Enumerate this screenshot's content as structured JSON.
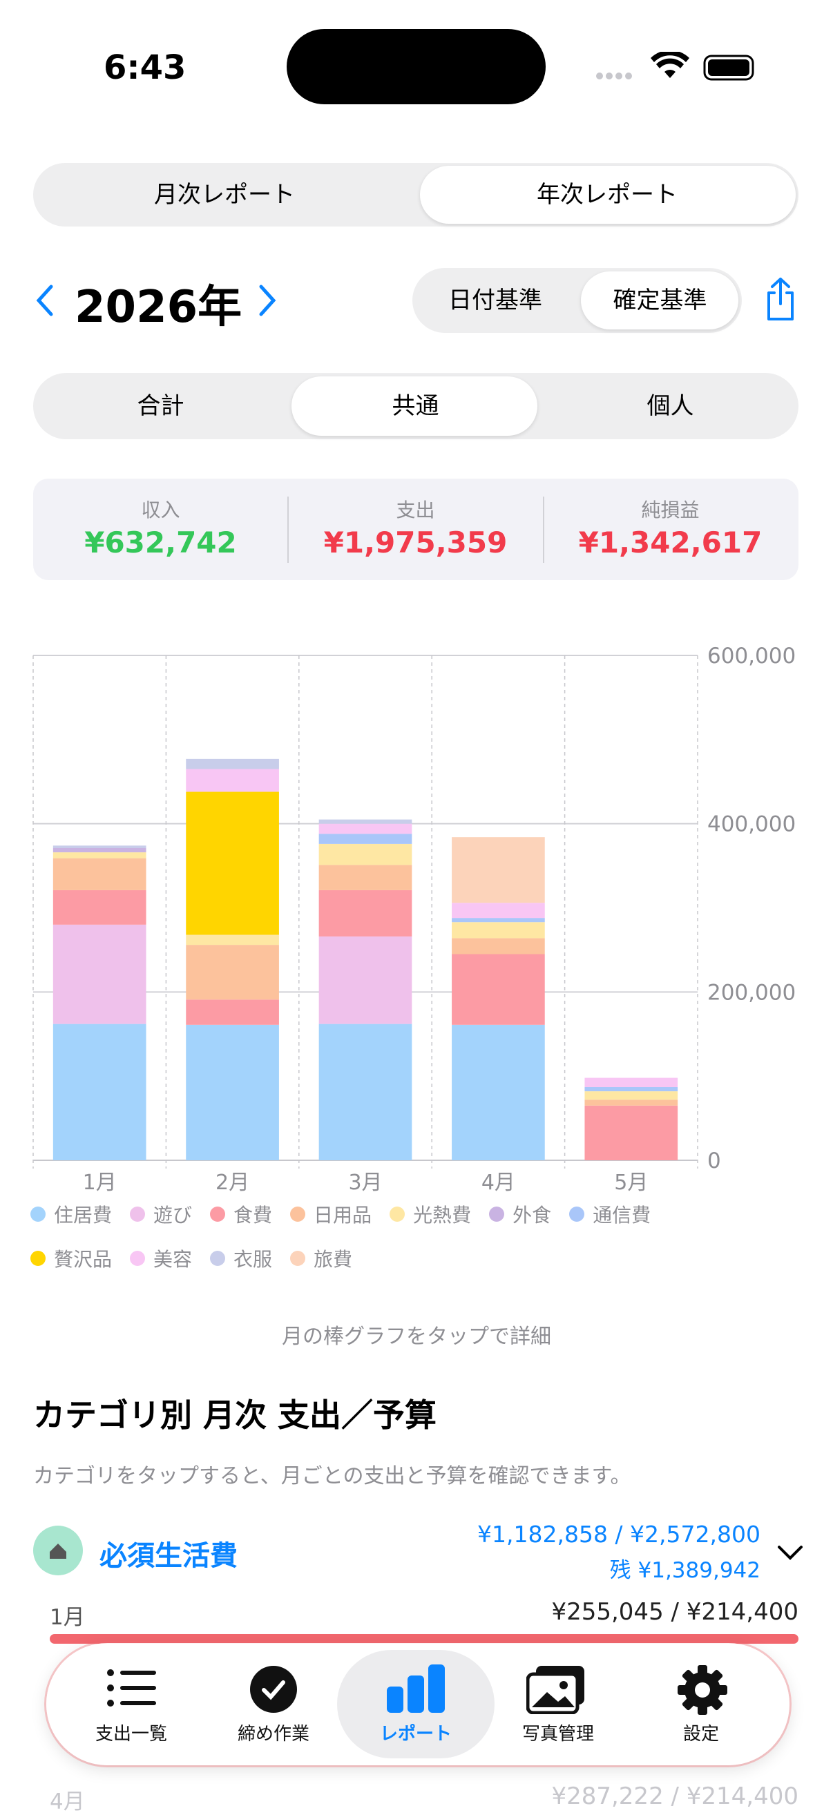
{
  "status": {
    "time": "6:43"
  },
  "report_tabs": [
    "月次レポート",
    "年次レポート"
  ],
  "year": "2026年",
  "basis": [
    "日付基準",
    "確定基準"
  ],
  "scope": [
    "合計",
    "共通",
    "個人"
  ],
  "summary": [
    {
      "label": "収入",
      "value": "¥632,742"
    },
    {
      "label": "支出",
      "value": "¥1,975,359"
    },
    {
      "label": "純損益",
      "value": "¥1,342,617"
    }
  ],
  "chart_data": {
    "type": "bar",
    "stacked": true,
    "categories": [
      "1月",
      "2月",
      "3月",
      "4月",
      "5月"
    ],
    "series": [
      {
        "name": "住居費",
        "color": "#a3d3fc",
        "values": [
          162000,
          161000,
          162000,
          161000,
          0
        ]
      },
      {
        "name": "遊び",
        "color": "#efc1eb",
        "values": [
          118000,
          0,
          104000,
          0,
          0
        ]
      },
      {
        "name": "食費",
        "color": "#fc9ba4",
        "values": [
          41000,
          30000,
          55000,
          84000,
          65000
        ]
      },
      {
        "name": "日用品",
        "color": "#fcc29c",
        "values": [
          38000,
          65000,
          30000,
          19000,
          7000
        ]
      },
      {
        "name": "光熱費",
        "color": "#fee7a3",
        "values": [
          7000,
          12000,
          25000,
          19000,
          10000
        ]
      },
      {
        "name": "外食",
        "color": "#c9b3e2",
        "values": [
          5000,
          0,
          0,
          0,
          0
        ]
      },
      {
        "name": "通信費",
        "color": "#a9c6f9",
        "values": [
          0,
          0,
          12000,
          5000,
          5000
        ]
      },
      {
        "name": "贅沢品",
        "color": "#ffd500",
        "values": [
          0,
          170000,
          0,
          0,
          0
        ]
      },
      {
        "name": "美容",
        "color": "#f8c6f4",
        "values": [
          0,
          27000,
          12000,
          18000,
          11000
        ]
      },
      {
        "name": "衣服",
        "color": "#c8cdea",
        "values": [
          3000,
          12000,
          5000,
          0,
          0
        ]
      },
      {
        "name": "旅費",
        "color": "#fcd3ba",
        "values": [
          0,
          0,
          0,
          78000,
          0
        ]
      }
    ],
    "ylim": [
      0,
      600000
    ],
    "yticks": [
      0,
      {
        "value": 200000,
        "label": "200,000"
      },
      {
        "value": 400000,
        "label": "400,000"
      },
      {
        "value": 600000,
        "label": "600,000"
      }
    ],
    "grid": true
  },
  "hint": "月の棒グラフをタップで詳細",
  "section": {
    "title": "カテゴリ別 月次 支出／予算",
    "subtitle": "カテゴリをタップすると、月ごとの支出と予算を確認できます。",
    "category": {
      "name": "必須生活費",
      "amount": "¥1,182,858 / ¥2,572,800",
      "remaining": "残 ¥1,389,942",
      "months": [
        {
          "month": "1月",
          "amount": "¥255,045 / ¥214,400"
        },
        {
          "month": "4月",
          "amount": "¥287,222 / ¥214,400"
        }
      ]
    }
  },
  "tabbar": [
    "支出一覧",
    "締め作業",
    "レポート",
    "写真管理",
    "設定"
  ]
}
